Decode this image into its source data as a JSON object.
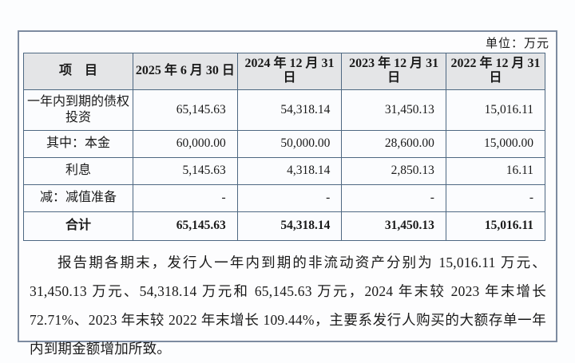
{
  "page": {
    "unit_label": "单位：万元"
  },
  "table": {
    "columns": [
      "项　目",
      "2025 年 6 月 30 日",
      "2024 年 12 月 31 日",
      "2023 年 12 月 31 日",
      "2022 年 12 月 31 日"
    ],
    "rows": [
      {
        "label": "一年内到期的债权投资",
        "values": [
          "65,145.63",
          "54,318.14",
          "31,450.13",
          "15,016.11"
        ],
        "bold": false
      },
      {
        "label": "其中：本金",
        "values": [
          "60,000.00",
          "50,000.00",
          "28,600.00",
          "15,000.00"
        ],
        "bold": false
      },
      {
        "label": "利息",
        "values": [
          "5,145.63",
          "4,318.14",
          "2,850.13",
          "16.11"
        ],
        "bold": false
      },
      {
        "label": "减：减值准备",
        "values": [
          "-",
          "-",
          "-",
          "-"
        ],
        "bold": false
      },
      {
        "label": "合计",
        "values": [
          "65,145.63",
          "54,318.14",
          "31,450.13",
          "15,016.11"
        ],
        "bold": true
      }
    ]
  },
  "note": {
    "text": "报告期各期末，发行人一年内到期的非流动资产分别为 15,016.11 万元、31,450.13 万元、54,318.14 万元和 65,145.63 万元，2024 年末较 2023 年末增长 72.71%、2023 年末较 2022 年末增长 109.44%，主要系发行人购买的大额存单一年内到期金额增加所致。"
  },
  "colors": {
    "table_border": "#4e6882",
    "frame_border": "#7d8ba0",
    "header_bg": "#e4e5e7",
    "text": "#1a1a1a"
  }
}
